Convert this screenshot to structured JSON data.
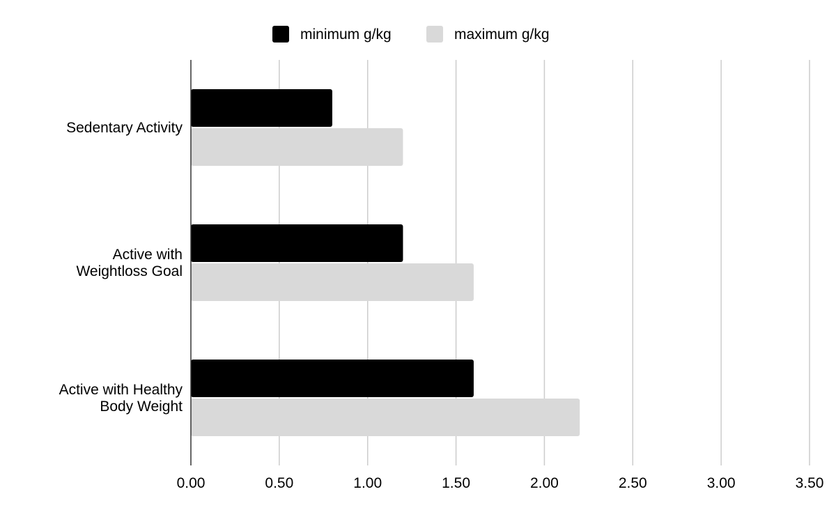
{
  "chart_data": {
    "type": "bar",
    "orientation": "horizontal",
    "categories": [
      [
        "Sedentary Activity"
      ],
      [
        "Active with",
        "Weightloss Goal"
      ],
      [
        "Active with Healthy",
        "Body Weight"
      ]
    ],
    "series": [
      {
        "name": "minimum g/kg",
        "values": [
          0.8,
          1.2,
          1.6
        ],
        "color": "#000000"
      },
      {
        "name": "maximum g/kg",
        "values": [
          1.2,
          1.6,
          2.2
        ],
        "color": "#d9d9d9"
      }
    ],
    "xlim": [
      0,
      3.5
    ],
    "x_ticks": [
      "0.00",
      "0.50",
      "1.00",
      "1.50",
      "2.00",
      "2.50",
      "3.00",
      "3.50"
    ],
    "x_tick_values": [
      0,
      0.5,
      1.0,
      1.5,
      2.0,
      2.5,
      3.0,
      3.5
    ],
    "grid": true,
    "legend_position": "top-center"
  }
}
